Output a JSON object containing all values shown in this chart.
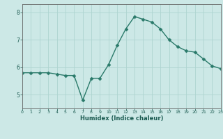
{
  "x": [
    0,
    1,
    2,
    3,
    4,
    5,
    6,
    7,
    8,
    9,
    10,
    11,
    12,
    13,
    14,
    15,
    16,
    17,
    18,
    19,
    20,
    21,
    22,
    23
  ],
  "y": [
    5.8,
    5.8,
    5.8,
    5.8,
    5.75,
    5.7,
    5.7,
    4.8,
    5.6,
    5.6,
    6.1,
    6.8,
    7.4,
    7.85,
    7.75,
    7.65,
    7.4,
    7.0,
    6.75,
    6.6,
    6.55,
    6.3,
    6.05,
    5.95
  ],
  "xlabel": "Humidex (Indice chaleur)",
  "ylim": [
    4.5,
    8.3
  ],
  "xlim": [
    0,
    23
  ],
  "yticks": [
    5,
    6,
    7,
    8
  ],
  "xticks": [
    0,
    1,
    2,
    3,
    4,
    5,
    6,
    7,
    8,
    9,
    10,
    11,
    12,
    13,
    14,
    15,
    16,
    17,
    18,
    19,
    20,
    21,
    22,
    23
  ],
  "line_color": "#2a7a6a",
  "marker_color": "#2a7a6a",
  "bg_color": "#cce8e6",
  "grid_color": "#aed4d0",
  "axis_color": "#666666",
  "tick_label_color": "#1a5a50",
  "xlabel_color": "#1a5a50",
  "marker": "D",
  "marker_size": 2.5,
  "line_width": 1.0
}
